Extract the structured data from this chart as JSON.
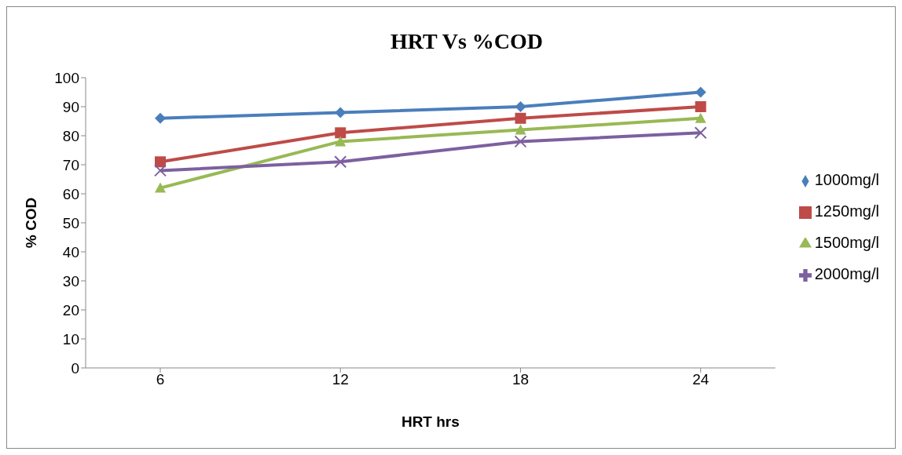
{
  "chart_data": {
    "type": "line",
    "title": "HRT  Vs  %COD",
    "xlabel": "HRT hrs",
    "ylabel": "% COD",
    "categories": [
      "6",
      "12",
      "18",
      "24"
    ],
    "series": [
      {
        "name": "1000mg/l",
        "color": "#4a7ebb",
        "values": [
          86,
          88,
          90,
          95
        ],
        "marker": "diamond"
      },
      {
        "name": "1250mg/l",
        "color": "#be4b48",
        "values": [
          71,
          81,
          86,
          90
        ],
        "marker": "square"
      },
      {
        "name": "1500mg/l",
        "color": "#98b954",
        "values": [
          62,
          78,
          82,
          86
        ],
        "marker": "triangle"
      },
      {
        "name": "2000mg/l",
        "color": "#7d60a0",
        "values": [
          68,
          71,
          78,
          81
        ],
        "marker": "cross"
      }
    ],
    "ylim": [
      0,
      100
    ],
    "yticks": [
      0,
      10,
      20,
      30,
      40,
      50,
      60,
      70,
      80,
      90,
      100
    ],
    "grid": false,
    "legend": "right",
    "line_style": "solid"
  }
}
